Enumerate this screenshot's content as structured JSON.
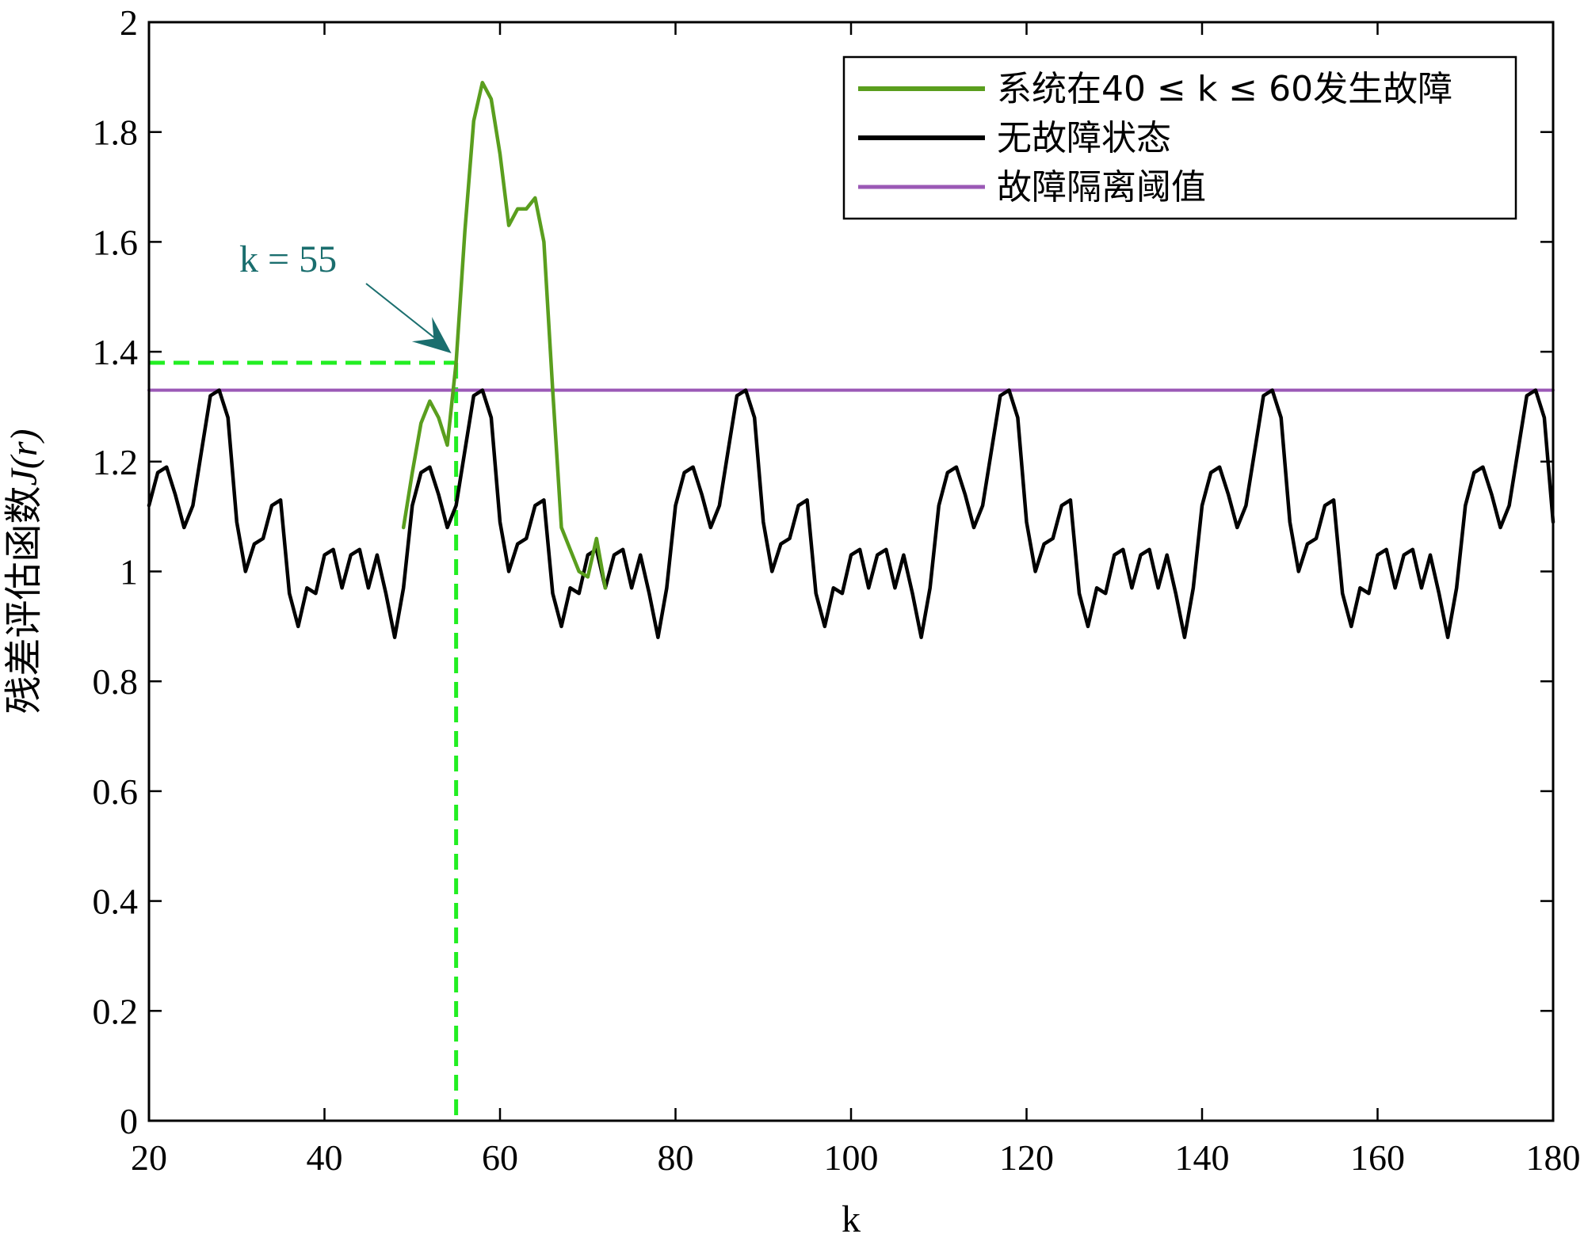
{
  "chart_data": {
    "type": "line",
    "xlabel": "k",
    "ylabel_cn": "残差评估函数",
    "ylabel_math": "J(r)",
    "xlim": [
      20,
      180
    ],
    "ylim": [
      0,
      2
    ],
    "xticks": [
      20,
      40,
      60,
      80,
      100,
      120,
      140,
      160,
      180
    ],
    "yticks": [
      0,
      0.2,
      0.4,
      0.6,
      0.8,
      1,
      1.2,
      1.4,
      1.6,
      1.8,
      2
    ],
    "ytick_labels": [
      "0",
      "0.2",
      "0.4",
      "0.6",
      "0.8",
      "1",
      "1.2",
      "1.4",
      "1.6",
      "1.8",
      "2"
    ],
    "grid": false,
    "legend_position": "top-right",
    "series": [
      {
        "name": "系统在40 ≤ k ≤ 60发生故障",
        "color": "#5a9e1e",
        "x": [
          49,
          50,
          51,
          52,
          53,
          54,
          55,
          56,
          57,
          58,
          59,
          60,
          61,
          62,
          63,
          64,
          65,
          66,
          67,
          68,
          69,
          70,
          71,
          72
        ],
        "y": [
          1.08,
          1.18,
          1.27,
          1.31,
          1.28,
          1.23,
          1.38,
          1.62,
          1.82,
          1.89,
          1.86,
          1.76,
          1.63,
          1.66,
          1.66,
          1.68,
          1.6,
          1.33,
          1.08,
          1.04,
          1.0,
          0.99,
          1.06,
          0.97
        ]
      },
      {
        "name": "无故障状态",
        "color": "#000000",
        "x": [
          20,
          21,
          22,
          23,
          24,
          25,
          26,
          27,
          28,
          29,
          30,
          31,
          32,
          33,
          34,
          35,
          36,
          37,
          38,
          39,
          40,
          41,
          42,
          43,
          44,
          45,
          46,
          47,
          48,
          49,
          50,
          51,
          52,
          53,
          54,
          55,
          56,
          57,
          58,
          59,
          60,
          61,
          62,
          63,
          64,
          65,
          66,
          67,
          68,
          69,
          70,
          71,
          72,
          73,
          74,
          75,
          76,
          77,
          78,
          79,
          80,
          81,
          82,
          83,
          84,
          85,
          86,
          87,
          88,
          89,
          90,
          91,
          92,
          93,
          94,
          95,
          96,
          97,
          98,
          99,
          100,
          101,
          102,
          103,
          104,
          105,
          106,
          107,
          108,
          109,
          110,
          111,
          112,
          113,
          114,
          115,
          116,
          117,
          118,
          119,
          120,
          121,
          122,
          123,
          124,
          125,
          126,
          127,
          128,
          129,
          130,
          131,
          132,
          133,
          134,
          135,
          136,
          137,
          138,
          139,
          140,
          141,
          142,
          143,
          144,
          145,
          146,
          147,
          148,
          149,
          150,
          151,
          152,
          153,
          154,
          155,
          156,
          157,
          158,
          159,
          160,
          161,
          162,
          163,
          164,
          165,
          166,
          167,
          168,
          169,
          170,
          171,
          172,
          173,
          174,
          175,
          176,
          177,
          178,
          179,
          180
        ],
        "y": [
          1.12,
          1.18,
          1.19,
          1.14,
          1.08,
          1.12,
          1.22,
          1.32,
          1.33,
          1.28,
          1.09,
          1.0,
          1.05,
          1.06,
          1.12,
          1.13,
          0.96,
          0.9,
          0.97,
          0.96,
          1.03,
          1.04,
          0.97,
          1.03,
          1.04,
          0.97,
          1.03,
          0.96,
          0.88,
          0.97,
          1.12,
          1.18,
          1.19,
          1.14,
          1.08,
          1.12,
          1.22,
          1.32,
          1.33,
          1.28,
          1.09,
          1.0,
          1.05,
          1.06,
          1.12,
          1.13,
          0.96,
          0.9,
          0.97,
          0.96,
          1.03,
          1.04,
          0.97,
          1.03,
          1.04,
          0.97,
          1.03,
          0.96,
          0.88,
          0.97,
          1.12,
          1.18,
          1.19,
          1.14,
          1.08,
          1.12,
          1.22,
          1.32,
          1.33,
          1.28,
          1.09,
          1.0,
          1.05,
          1.06,
          1.12,
          1.13,
          0.96,
          0.9,
          0.97,
          0.96,
          1.03,
          1.04,
          0.97,
          1.03,
          1.04,
          0.97,
          1.03,
          0.96,
          0.88,
          0.97,
          1.12,
          1.18,
          1.19,
          1.14,
          1.08,
          1.12,
          1.22,
          1.32,
          1.33,
          1.28,
          1.09,
          1.0,
          1.05,
          1.06,
          1.12,
          1.13,
          0.96,
          0.9,
          0.97,
          0.96,
          1.03,
          1.04,
          0.97,
          1.03,
          1.04,
          0.97,
          1.03,
          0.96,
          0.88,
          0.97,
          1.12,
          1.18,
          1.19,
          1.14,
          1.08,
          1.12,
          1.22,
          1.32,
          1.33,
          1.28,
          1.09,
          1.0,
          1.05,
          1.06,
          1.12,
          1.13,
          0.96,
          0.9,
          0.97,
          0.96,
          1.03,
          1.04,
          0.97,
          1.03,
          1.04,
          0.97,
          1.03,
          0.96,
          0.88,
          0.97,
          1.12,
          1.18,
          1.19,
          1.14,
          1.08,
          1.12,
          1.22,
          1.32,
          1.33,
          1.28,
          1.09
        ]
      },
      {
        "name": "故障隔离阈值",
        "color": "#9b59b6",
        "x": [
          20,
          180
        ],
        "y": [
          1.33,
          1.33
        ]
      }
    ],
    "annotations": [
      {
        "text": "k = 55",
        "color": "#1a6e6e",
        "target_x": 55,
        "target_y": 1.38,
        "guide_color": "#22ee22"
      }
    ]
  }
}
